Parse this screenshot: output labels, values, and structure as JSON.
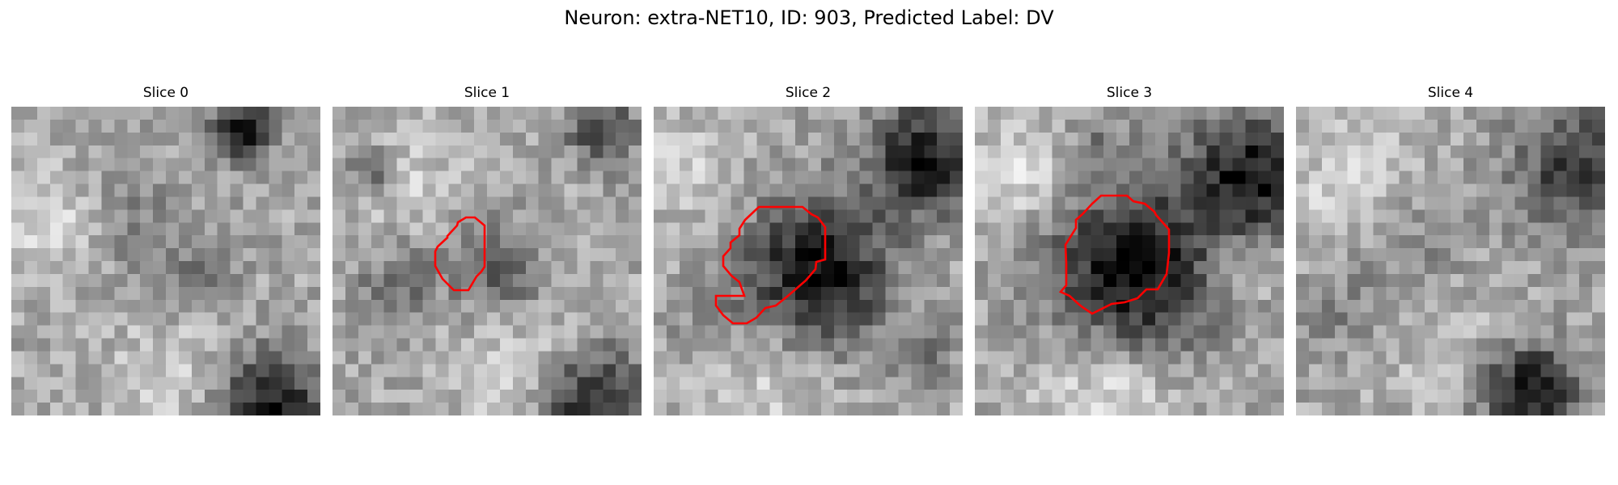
{
  "figure": {
    "title": "Neuron: extra-NET10, ID: 903, Predicted Label: DV"
  },
  "panels": [
    {
      "title": "Slice 0",
      "has_contour": false
    },
    {
      "title": "Slice 1",
      "has_contour": true
    },
    {
      "title": "Slice 2",
      "has_contour": true
    },
    {
      "title": "Slice 3",
      "has_contour": true
    },
    {
      "title": "Slice 4",
      "has_contour": false
    }
  ],
  "colors": {
    "contour": "#ff0000",
    "colormap": "gray"
  }
}
